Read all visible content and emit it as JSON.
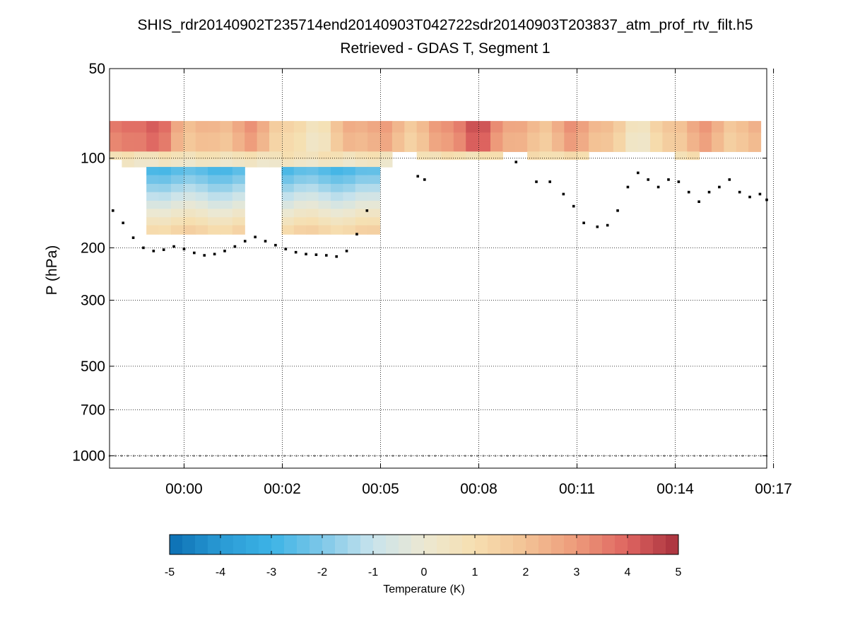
{
  "chart_data": {
    "type": "heatmap",
    "title": "SHIS_rdr20140902T235714end20140903T042722sdr20140903T203837_atm_prof_rtv_filt.h5",
    "subtitle": "Retrieved - GDAS T, Segment 1",
    "ylabel": "P (hPa)",
    "xlabel": "",
    "y_scale": "log",
    "y_inverted": true,
    "ylim": [
      50,
      1100
    ],
    "y_ticks": [
      50,
      100,
      200,
      300,
      500,
      700,
      1000
    ],
    "y_tick_labels": [
      "50",
      "100",
      "200",
      "300",
      "500",
      "700",
      "1000"
    ],
    "xlim": [
      -2.2,
      17.2
    ],
    "x_ticks": [
      0,
      2.9,
      5.8,
      8.7,
      11.6,
      14.5,
      17.4
    ],
    "x_tick_labels": [
      "00:00",
      "00:02",
      "00:05",
      "00:08",
      "00:11",
      "00:14",
      "00:17"
    ],
    "grid": true,
    "heatmap": {
      "x_start": -2.2,
      "x_step": 0.3627,
      "columns": 53,
      "p_levels": [
        75,
        82,
        88,
        95,
        101,
        107,
        114,
        122,
        130,
        139,
        148,
        158,
        168,
        180,
        192
      ],
      "blocks": [
        {
          "c0": 0,
          "c1": 52,
          "p0": 75,
          "p1": 95,
          "value": 2.2,
          "pattern": "warm_band"
        },
        {
          "c0": 0,
          "c1": 22,
          "p0": 95,
          "p1": 101,
          "value": 0.8
        },
        {
          "c0": 25,
          "c1": 31,
          "p0": 95,
          "p1": 101,
          "value": 0.9
        },
        {
          "c0": 34,
          "c1": 38,
          "p0": 95,
          "p1": 101,
          "value": 1.0
        },
        {
          "c0": 46,
          "c1": 47,
          "p0": 95,
          "p1": 101,
          "value": 0.9
        },
        {
          "c0": 1,
          "c1": 22,
          "p0": 101,
          "p1": 107,
          "value": 0.3
        },
        {
          "c0": 3,
          "c1": 10,
          "p0": 107,
          "p1": 180,
          "value": -2.5,
          "pattern": "cold_core"
        },
        {
          "c0": 14,
          "c1": 21,
          "p0": 107,
          "p1": 180,
          "value": -2.5,
          "pattern": "cold_core"
        }
      ]
    },
    "tropopause_series": {
      "name": "tropopause pressure",
      "x": [
        -2.1,
        -1.8,
        -1.5,
        -1.2,
        -0.9,
        -0.6,
        -0.3,
        0.0,
        0.3,
        0.6,
        0.9,
        1.2,
        1.5,
        1.8,
        2.1,
        2.4,
        2.7,
        3.0,
        3.3,
        3.6,
        3.9,
        4.2,
        4.5,
        4.8,
        5.1,
        5.4,
        6.9,
        7.1,
        9.8,
        10.4,
        10.8,
        11.2,
        11.5,
        11.8,
        12.2,
        12.5,
        12.8,
        13.1,
        13.4,
        13.7,
        14.0,
        14.3,
        14.6,
        14.9,
        15.2,
        15.5,
        15.8,
        16.1,
        16.4,
        16.7,
        17.0,
        17.2
      ],
      "y": [
        150,
        165,
        185,
        200,
        205,
        203,
        198,
        202,
        208,
        212,
        210,
        205,
        198,
        190,
        184,
        190,
        196,
        202,
        207,
        210,
        211,
        212,
        214,
        205,
        180,
        150,
        115,
        118,
        103,
        120,
        120,
        132,
        145,
        165,
        170,
        168,
        150,
        125,
        112,
        118,
        125,
        118,
        120,
        130,
        140,
        130,
        125,
        118,
        130,
        135,
        132,
        138
      ]
    },
    "surface_series": {
      "name": "surface pressure",
      "x_start": -2.2,
      "x_end": 17.2,
      "value": 1000,
      "count": 110
    },
    "colorbar": {
      "label": "Temperature (K)",
      "range": [
        -5,
        5
      ],
      "ticks": [
        -5,
        -4,
        -3,
        -2,
        -1,
        0,
        1,
        2,
        3,
        4,
        5
      ],
      "tick_labels": [
        "-5",
        "-4",
        "-3",
        "-2",
        "-1",
        "0",
        "1",
        "2",
        "3",
        "4",
        "5"
      ],
      "colors": [
        "#0b6fb3",
        "#2a9ad4",
        "#3cb3e6",
        "#7ec8e8",
        "#c8e3ec",
        "#ece8d2",
        "#f6dfb0",
        "#f3c295",
        "#ed9a7a",
        "#de6460",
        "#a8303d"
      ]
    }
  }
}
